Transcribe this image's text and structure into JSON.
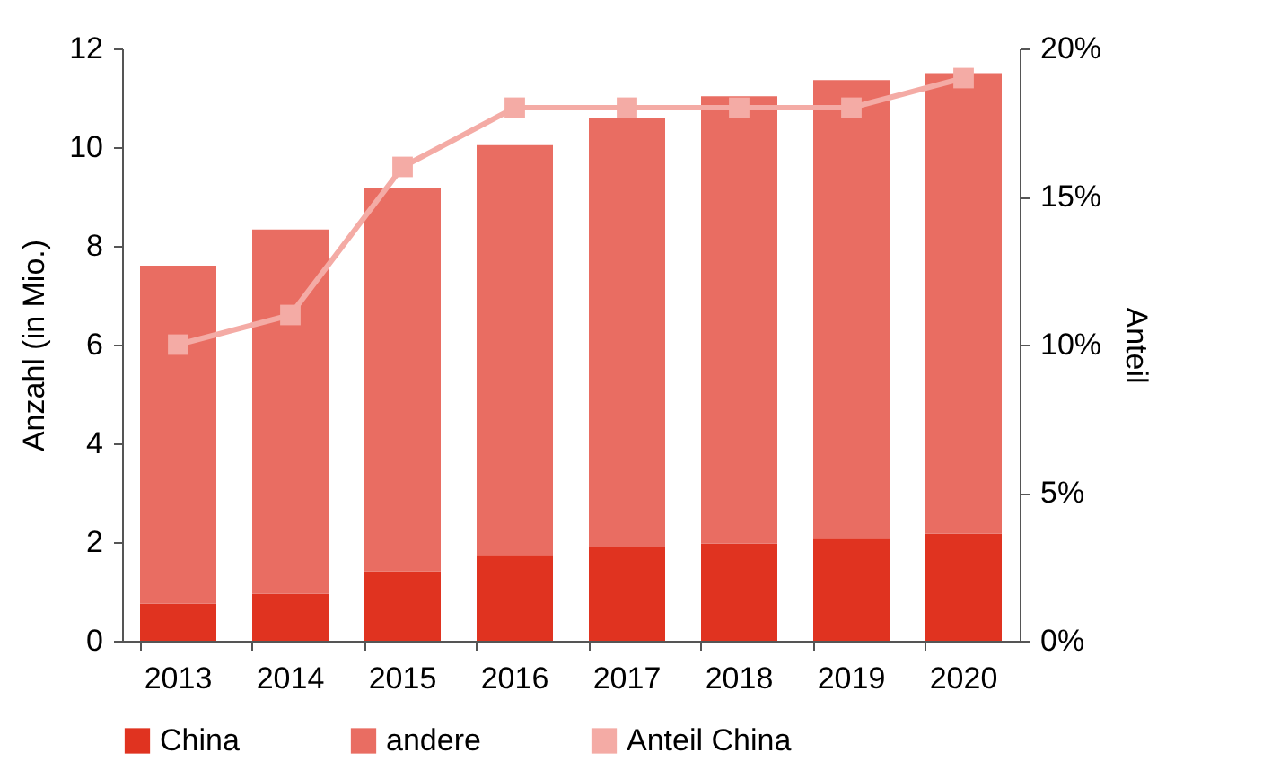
{
  "chart_data": {
    "type": "bar",
    "stacked": true,
    "ylabel": "Anzahl (in Mio.)",
    "y2label": "Anteil",
    "categories": [
      "2013",
      "2014",
      "2015",
      "2016",
      "2017",
      "2018",
      "2019",
      "2020"
    ],
    "series": [
      {
        "name": "China",
        "color": "#e03320",
        "values": [
          0.75,
          0.95,
          1.41,
          1.74,
          1.89,
          1.97,
          2.07,
          2.17
        ]
      },
      {
        "name": "andere",
        "color": "#e96d62",
        "values": [
          6.85,
          7.38,
          7.76,
          8.3,
          8.7,
          9.06,
          9.29,
          9.33
        ]
      },
      {
        "name": "Anteil China",
        "color": "#f4aba5",
        "type": "line",
        "axis": "y2",
        "values": [
          10,
          11,
          16,
          18,
          18,
          18,
          18,
          19
        ]
      }
    ],
    "ylim": [
      0,
      12
    ],
    "yticks": [
      0,
      2,
      4,
      6,
      8,
      10,
      12
    ],
    "y2lim": [
      0,
      20
    ],
    "y2ticks": [
      {
        "value": 0,
        "label": "0%"
      },
      {
        "value": 5,
        "label": "5%"
      },
      {
        "value": 10,
        "label": "10%"
      },
      {
        "value": 15,
        "label": "15%"
      },
      {
        "value": 20,
        "label": "20%"
      }
    ],
    "grid": false,
    "legend": "bottom",
    "marker": "square",
    "line_style": "solid"
  }
}
